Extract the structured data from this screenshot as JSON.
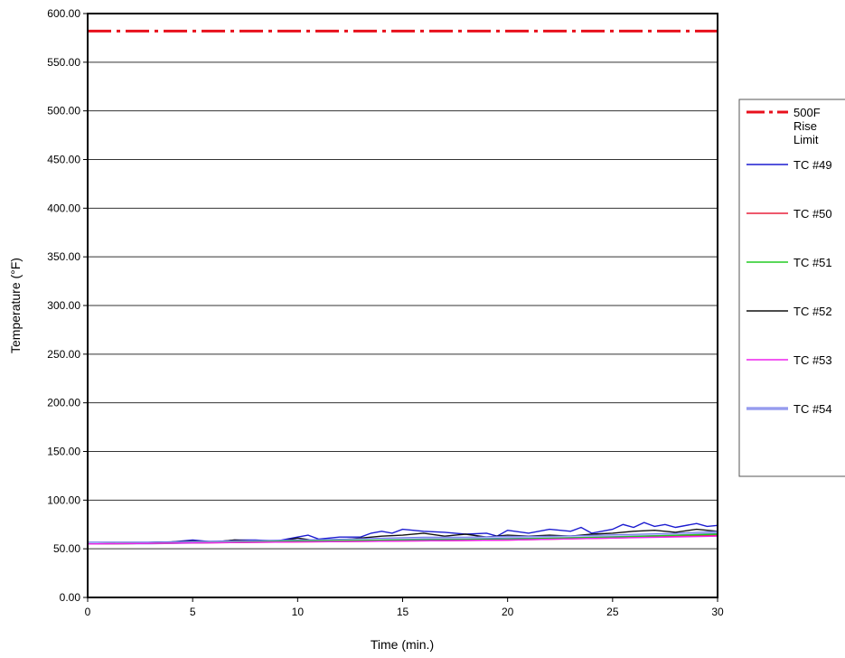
{
  "chart_data": {
    "type": "line",
    "xlabel": "Time (min.)",
    "ylabel": "Temperature (°F)",
    "xlim": [
      0,
      30
    ],
    "ylim": [
      0,
      600
    ],
    "x_ticks": [
      0,
      5,
      10,
      15,
      20,
      25,
      30
    ],
    "x_tick_labels": [
      "0",
      "5",
      "10",
      "15",
      "20",
      "25",
      "30"
    ],
    "y_ticks": [
      0,
      50,
      100,
      150,
      200,
      250,
      300,
      350,
      400,
      450,
      500,
      550,
      600
    ],
    "y_tick_labels": [
      "0.00",
      "50.00",
      "100.00",
      "150.00",
      "200.00",
      "250.00",
      "300.00",
      "350.00",
      "400.00",
      "450.00",
      "500.00",
      "550.00",
      "600.00"
    ],
    "grid": "horizontal",
    "legend_position": "right",
    "series": [
      {
        "name": "500F Rise Limit",
        "legend_lines": [
          "500F",
          "Rise",
          "Limit"
        ],
        "color": "#e8101c",
        "style": "dash-dot",
        "x": [
          0,
          30
        ],
        "y": [
          582,
          582
        ]
      },
      {
        "name": "TC #49",
        "legend_lines": [
          "TC #49"
        ],
        "color": "#1b1bd0",
        "style": "solid",
        "x": [
          0,
          2,
          4,
          5,
          6,
          7,
          8,
          9,
          10,
          10.5,
          11,
          12,
          13,
          13.5,
          14,
          14.5,
          15,
          16,
          17,
          18,
          19,
          19.5,
          20,
          21,
          22,
          23,
          23.5,
          24,
          25,
          25.5,
          26,
          26.5,
          27,
          27.5,
          28,
          29,
          29.5,
          30
        ],
        "y": [
          56,
          56,
          57,
          59,
          57,
          59,
          59,
          58,
          62,
          64,
          60,
          62,
          62,
          66,
          68,
          66,
          70,
          68,
          67,
          65,
          66,
          63,
          69,
          66,
          70,
          68,
          72,
          66,
          70,
          75,
          72,
          77,
          73,
          75,
          72,
          76,
          73,
          74
        ]
      },
      {
        "name": "TC #50",
        "legend_lines": [
          "TC #50"
        ],
        "color": "#e8203c",
        "style": "solid",
        "x": [
          0,
          5,
          10,
          15,
          20,
          25,
          30
        ],
        "y": [
          55,
          56,
          57,
          58,
          59,
          61,
          64
        ]
      },
      {
        "name": "TC #51",
        "legend_lines": [
          "TC #51"
        ],
        "color": "#22cc22",
        "style": "solid",
        "x": [
          0,
          5,
          10,
          15,
          20,
          25,
          30
        ],
        "y": [
          55,
          56,
          58,
          59,
          60,
          62,
          65
        ]
      },
      {
        "name": "TC #52",
        "legend_lines": [
          "TC #52"
        ],
        "color": "#111111",
        "style": "solid",
        "x": [
          0,
          2,
          4,
          5,
          6,
          7,
          8,
          9,
          10,
          11,
          12,
          13,
          14,
          15,
          16,
          17,
          18,
          19,
          20,
          21,
          22,
          23,
          24,
          25,
          26,
          27,
          28,
          29,
          30
        ],
        "y": [
          56,
          56,
          57,
          58,
          57,
          59,
          58,
          57,
          61,
          58,
          59,
          61,
          63,
          64,
          66,
          63,
          65,
          62,
          64,
          63,
          64,
          63,
          65,
          66,
          68,
          69,
          67,
          70,
          68
        ]
      },
      {
        "name": "TC #53",
        "legend_lines": [
          "TC #53"
        ],
        "color": "#ee22ee",
        "style": "solid",
        "x": [
          0,
          5,
          10,
          15,
          20,
          25,
          30
        ],
        "y": [
          55,
          56,
          57,
          58,
          59,
          61,
          63
        ]
      },
      {
        "name": "TC #54",
        "legend_lines": [
          "TC #54"
        ],
        "color": "#6a72e8",
        "style": "double",
        "x": [
          0,
          3,
          6,
          9,
          12,
          14,
          16,
          18,
          20,
          22,
          24,
          26,
          28,
          30
        ],
        "y": [
          56,
          56,
          57,
          58,
          59,
          60,
          61,
          61,
          62,
          62,
          63,
          64,
          65,
          67
        ]
      }
    ]
  }
}
